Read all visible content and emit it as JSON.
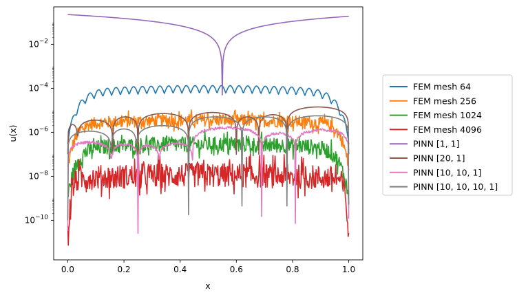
{
  "chart_data": {
    "type": "line",
    "title": "",
    "xlabel": "x",
    "ylabel": "u(x)",
    "xlim": [
      -0.05,
      1.05
    ],
    "ylog": true,
    "ylim_exp": [
      -11.8,
      -0.3
    ],
    "x_ticks": [
      0.0,
      0.2,
      0.4,
      0.6,
      0.8,
      1.0
    ],
    "x_tick_labels": [
      "0.0",
      "0.2",
      "0.4",
      "0.6",
      "0.8",
      "1.0"
    ],
    "y_tick_exps": [
      -10,
      -8,
      -6,
      -4,
      -2
    ],
    "y_tick_labels": [
      {
        "base": "10",
        "exp": "−10"
      },
      {
        "base": "10",
        "exp": "−8"
      },
      {
        "base": "10",
        "exp": "−6"
      },
      {
        "base": "10",
        "exp": "−4"
      },
      {
        "base": "10",
        "exp": "−2"
      }
    ],
    "legend_position": "outside-right",
    "series": [
      {
        "name": "FEM mesh 64",
        "color": "#1f77b4",
        "kind": "fem",
        "base_exp": -4.05,
        "edge_exp": -6.2,
        "edge_w": 0.035,
        "osc_amp": 0.35,
        "osc_n": 64,
        "noise": 0.0
      },
      {
        "name": "FEM mesh 256",
        "color": "#ff7f0e",
        "kind": "fem",
        "base_exp": -5.45,
        "edge_exp": -7.5,
        "edge_w": 0.025,
        "osc_amp": 0.12,
        "osc_n": 0,
        "noise": 0.28
      },
      {
        "name": "FEM mesh 1024",
        "color": "#2ca02c",
        "kind": "fem",
        "base_exp": -6.55,
        "edge_exp": -8.8,
        "edge_w": 0.03,
        "osc_amp": 0.0,
        "osc_n": 0,
        "noise": 0.35
      },
      {
        "name": "FEM mesh 4096",
        "color": "#d62728",
        "kind": "fem",
        "base_exp": -7.95,
        "edge_exp": -10.9,
        "edge_w": 0.01,
        "osc_amp": 0.0,
        "osc_n": 0,
        "noise": 0.55
      },
      {
        "name": "PINN [1, 1]",
        "color": "#9467bd",
        "kind": "vee",
        "peak_exp": -0.65,
        "center": 0.55,
        "min_exp": -4.3
      },
      {
        "name": "PINN [20, 1]",
        "color": "#8c564b",
        "kind": "arcs",
        "arcs": [
          [
            0.0,
            0.035,
            -5.65
          ],
          [
            0.035,
            0.16,
            -5.45
          ],
          [
            0.16,
            0.25,
            -5.3
          ],
          [
            0.25,
            0.43,
            -5.15
          ],
          [
            0.43,
            0.6,
            -5.1
          ],
          [
            0.6,
            0.68,
            -5.3
          ],
          [
            0.68,
            0.78,
            -5.2
          ],
          [
            0.78,
            1.0,
            -4.85
          ]
        ],
        "floor_exp": -7.0
      },
      {
        "name": "PINN [10, 10, 1]",
        "color": "#e377c2",
        "kind": "arcs",
        "arcs": [
          [
            0.0,
            0.155,
            -6.45
          ],
          [
            0.155,
            0.25,
            -6.55
          ],
          [
            0.25,
            0.325,
            -6.6
          ],
          [
            0.325,
            0.445,
            -6.5
          ],
          [
            0.445,
            0.69,
            -5.8
          ],
          [
            0.69,
            0.81,
            -6.05
          ],
          [
            0.81,
            1.0,
            -5.9
          ]
        ],
        "floor_exp": -12.5,
        "noise": 0.12
      },
      {
        "name": "PINN [10, 10, 10, 1]",
        "color": "#7f7f7f",
        "kind": "arcs",
        "arcs": [
          [
            0.0,
            0.155,
            -5.95
          ],
          [
            0.155,
            0.245,
            -5.85
          ],
          [
            0.245,
            0.43,
            -5.7
          ],
          [
            0.43,
            0.62,
            -5.3
          ],
          [
            0.62,
            0.78,
            -5.3
          ],
          [
            0.78,
            1.0,
            -5.25
          ]
        ],
        "floor_exp": -12.5
      }
    ]
  }
}
